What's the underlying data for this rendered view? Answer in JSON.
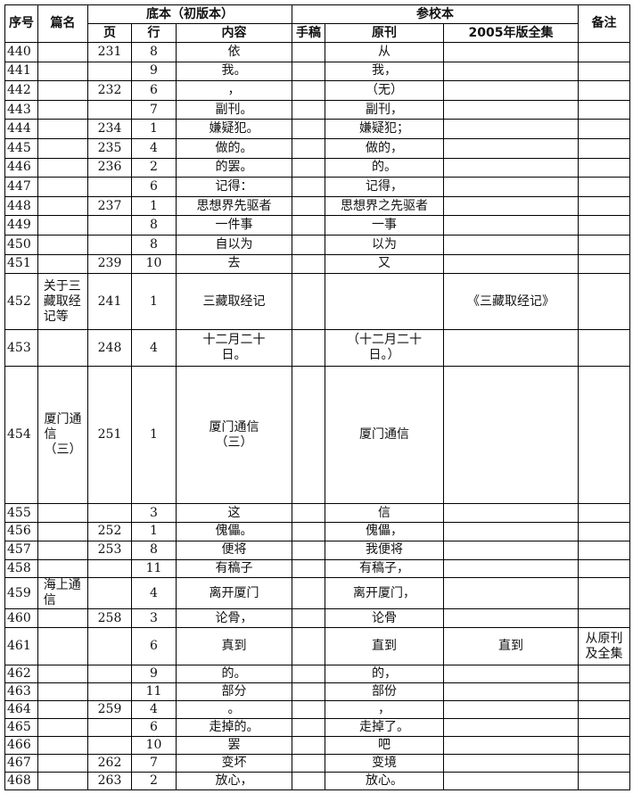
{
  "table": {
    "header": {
      "row1": [
        "序号",
        "篇名",
        "底本（初版本）",
        "参校本",
        "备注"
      ],
      "row2": [
        "页",
        "行",
        "内容",
        "手稿",
        "原刊",
        "2005年版全集"
      ]
    },
    "rows": [
      [
        "440",
        null,
        "231",
        "8",
        "依",
        null,
        "从",
        null,
        null
      ],
      [
        "441",
        null,
        null,
        "9",
        "我。",
        null,
        "我，",
        null,
        null
      ],
      [
        "442",
        null,
        "232",
        "6",
        "，",
        null,
        "（无）",
        null,
        null
      ],
      [
        "443",
        null,
        null,
        "7",
        "副刊。",
        null,
        "副刊，",
        null,
        null
      ],
      [
        "444",
        null,
        "234",
        "1",
        "嫌疑犯。",
        null,
        "嫌疑犯；",
        null,
        null
      ],
      [
        "445",
        null,
        "235",
        "4",
        "做的。",
        null,
        "做的，",
        null,
        null
      ],
      [
        "446",
        null,
        "236",
        "2",
        "的罢。",
        null,
        "的。",
        null,
        null
      ],
      [
        "447",
        null,
        null,
        "6",
        "记得：",
        null,
        "记得，",
        null,
        null
      ],
      [
        "448",
        null,
        "237",
        "1",
        "思想界先驱者",
        null,
        "思想界之先驱者",
        null,
        null
      ],
      [
        "449",
        null,
        null,
        "8",
        "一件事",
        null,
        "一事",
        null,
        null
      ],
      [
        "450",
        null,
        null,
        "8",
        "自以为",
        null,
        "以为",
        null,
        null
      ],
      [
        "451",
        null,
        "239",
        "10",
        "去",
        null,
        "又",
        null,
        null
      ],
      [
        "452",
        "关于三藏取经记等",
        "241",
        "1",
        "三藏取经记",
        null,
        null,
        "《三藏取经记》",
        null
      ],
      [
        "453",
        null,
        "248",
        "4",
        "十二月二十日。",
        null,
        "（十二月二十日。）",
        null,
        null
      ],
      [
        "454",
        "厦门通信（三）",
        "251",
        "1",
        "厦门通信（三）",
        null,
        "厦门通信",
        null,
        null
      ],
      [
        "455",
        null,
        null,
        "3",
        "这",
        null,
        "信",
        null,
        null
      ],
      [
        "456",
        null,
        "252",
        "1",
        "傀儡。",
        null,
        "傀儡，",
        null,
        null
      ],
      [
        "457",
        null,
        "253",
        "8",
        "便将",
        null,
        "我便将",
        null,
        null
      ],
      [
        "458",
        null,
        null,
        "11",
        "有稿子",
        null,
        "有稿子，",
        null,
        null
      ],
      [
        "459",
        "海上通信",
        null,
        "4",
        "离开厦门",
        null,
        "离开厦门，",
        null,
        null
      ],
      [
        "460",
        null,
        "258",
        "3",
        "论骨，",
        null,
        "论骨",
        null,
        null
      ],
      [
        "461",
        null,
        null,
        "6",
        "真到",
        null,
        "直到",
        "直到",
        "从原刊及全集"
      ],
      [
        "462",
        null,
        null,
        "9",
        "的。",
        null,
        "的，",
        null,
        null
      ],
      [
        "463",
        null,
        null,
        "11",
        "部分",
        null,
        "部份",
        null,
        null
      ],
      [
        "464",
        null,
        "259",
        "4",
        "。",
        null,
        "，",
        null,
        null
      ],
      [
        "465",
        null,
        null,
        "6",
        "走掉的。",
        null,
        "走掉了。",
        null,
        null
      ],
      [
        "466",
        null,
        null,
        "10",
        "罢",
        null,
        "吧",
        null,
        null
      ],
      [
        "467",
        null,
        "262",
        "7",
        "变坏",
        null,
        "变境",
        null,
        null
      ],
      [
        "468",
        null,
        "263",
        "2",
        "放心，",
        null,
        "放心。",
        null,
        null
      ]
    ]
  }
}
